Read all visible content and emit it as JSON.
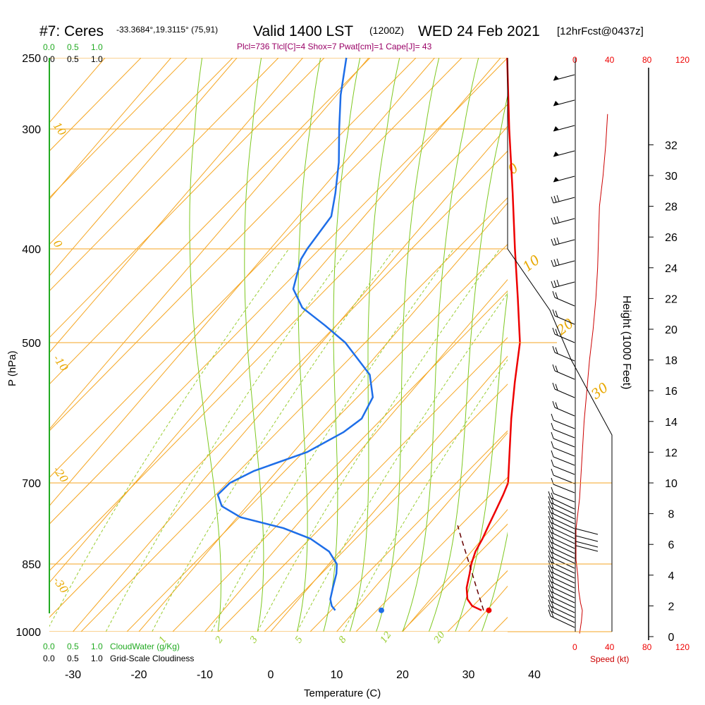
{
  "header": {
    "station": "#7: Ceres",
    "location": "-33.3684°,19.3115° (75,91)",
    "valid": "Valid 1400 LST",
    "zulu": "(1200Z)",
    "date": "WED 24 Feb 2021",
    "forecast": "[12hrFcst@0437z]",
    "indices": "Plcl=736 Tlcl[C]=4 Shox=7 Pwat[cm]=1 Cape[J]= 43"
  },
  "colors": {
    "isotherm": "#f5a623",
    "dry_adiabat": "#f5a623",
    "moist_adiabat": "#7ec820",
    "mixing_ratio": "#9acd32",
    "temperature": "#ee0000",
    "dewpoint": "#1e6ee8",
    "parcel": "#660000",
    "speed": "#cc0000",
    "cloud_axis": "#22aa22",
    "indices": "#990066"
  },
  "axes": {
    "x_label": "Temperature (C)",
    "y_label": "P (hPa)",
    "height_label": "Height (1000 Feet)",
    "speed_label": "Speed (kt)",
    "cloud_water_label": "CloudWater (g/Kg)",
    "cloudiness_label": "Grid-Scale Cloudiness",
    "cloud_ticks_green": [
      "0.0",
      "0.5",
      "1.0"
    ],
    "cloud_ticks_black": [
      "0.0",
      "0.5",
      "1.0"
    ],
    "speed_ticks": [
      "0",
      "40",
      "80",
      "120"
    ]
  },
  "chart_data": {
    "type": "skew-t",
    "pressure_levels": [
      250,
      300,
      400,
      500,
      700,
      850,
      1000
    ],
    "pressure_ticks": [
      "250",
      "300",
      "400",
      "500",
      "700",
      "850",
      "1000"
    ],
    "temp_ticks": [
      -30,
      -20,
      -10,
      0,
      10,
      20,
      30,
      40
    ],
    "height_ticks_kft": [
      0,
      2,
      4,
      6,
      8,
      10,
      12,
      14,
      16,
      18,
      20,
      22,
      24,
      26,
      28,
      30,
      32
    ],
    "temperature_profile": [
      {
        "p": 950,
        "t": 29.2
      },
      {
        "p": 940,
        "t": 27.2
      },
      {
        "p": 925,
        "t": 25.6
      },
      {
        "p": 900,
        "t": 24.0
      },
      {
        "p": 870,
        "t": 22.6
      },
      {
        "p": 850,
        "t": 21.6
      },
      {
        "p": 825,
        "t": 20.6
      },
      {
        "p": 800,
        "t": 20.0
      },
      {
        "p": 775,
        "t": 19.2
      },
      {
        "p": 750,
        "t": 18.4
      },
      {
        "p": 720,
        "t": 17.4
      },
      {
        "p": 700,
        "t": 16.6
      },
      {
        "p": 650,
        "t": 12.8
      },
      {
        "p": 600,
        "t": 8.7
      },
      {
        "p": 550,
        "t": 4.5
      },
      {
        "p": 500,
        "t": 0.1
      },
      {
        "p": 450,
        "t": -6.0
      },
      {
        "p": 400,
        "t": -12.9
      },
      {
        "p": 350,
        "t": -20.5
      },
      {
        "p": 300,
        "t": -29.4
      },
      {
        "p": 250,
        "t": -39.0
      }
    ],
    "dewpoint_profile": [
      {
        "p": 950,
        "t": 7.0
      },
      {
        "p": 940,
        "t": 5.9
      },
      {
        "p": 925,
        "t": 4.8
      },
      {
        "p": 900,
        "t": 3.7
      },
      {
        "p": 870,
        "t": 2.4
      },
      {
        "p": 850,
        "t": 1.2
      },
      {
        "p": 825,
        "t": -1.6
      },
      {
        "p": 800,
        "t": -6.1
      },
      {
        "p": 780,
        "t": -11.6
      },
      {
        "p": 760,
        "t": -19.5
      },
      {
        "p": 740,
        "t": -23.8
      },
      {
        "p": 720,
        "t": -25.9
      },
      {
        "p": 700,
        "t": -25.6
      },
      {
        "p": 680,
        "t": -23.5
      },
      {
        "p": 650,
        "t": -17.9
      },
      {
        "p": 620,
        "t": -15.0
      },
      {
        "p": 600,
        "t": -14.0
      },
      {
        "p": 570,
        "t": -15.1
      },
      {
        "p": 540,
        "t": -18.5
      },
      {
        "p": 500,
        "t": -26.4
      },
      {
        "p": 480,
        "t": -31.7
      },
      {
        "p": 460,
        "t": -37.5
      },
      {
        "p": 440,
        "t": -41.3
      },
      {
        "p": 410,
        "t": -44.0
      },
      {
        "p": 400,
        "t": -44.4
      },
      {
        "p": 370,
        "t": -45.0
      },
      {
        "p": 350,
        "t": -47.4
      },
      {
        "p": 325,
        "t": -50.9
      },
      {
        "p": 300,
        "t": -55.2
      },
      {
        "p": 275,
        "t": -59.4
      },
      {
        "p": 250,
        "t": -63.4
      }
    ],
    "parcel_path": [
      {
        "p": 950,
        "t": 29.5
      },
      {
        "p": 900,
        "t": 25.5
      },
      {
        "p": 850,
        "t": 21.3
      },
      {
        "p": 800,
        "t": 16.8
      },
      {
        "p": 775,
        "t": 14.5
      }
    ],
    "surface_points": {
      "temperature": {
        "p": 950,
        "t": 30.3
      },
      "dewpoint": {
        "p": 950,
        "t": 14.0
      }
    },
    "isotherm_labels": [
      "-30",
      "-20",
      "-10",
      "0",
      "10",
      "20",
      "30"
    ],
    "adiabat_labels": [
      "10",
      "0",
      "-10",
      "-20",
      "-30",
      "0",
      "10",
      "20",
      "30"
    ],
    "mixing_ratio_labels": [
      "1",
      "2",
      "3",
      "5",
      "8",
      "12",
      "20"
    ],
    "wind_speed_profile": [
      {
        "h": 0.2,
        "s": 4
      },
      {
        "h": 1.0,
        "s": 6
      },
      {
        "h": 1.7,
        "s": 7
      },
      {
        "h": 2.2,
        "s": 5
      },
      {
        "h": 3.0,
        "s": 3
      },
      {
        "h": 4.0,
        "s": 2
      },
      {
        "h": 5.0,
        "s": 0
      },
      {
        "h": 6.0,
        "s": 0
      },
      {
        "h": 7.0,
        "s": 0
      },
      {
        "h": 8.0,
        "s": 2
      },
      {
        "h": 9.0,
        "s": 4
      },
      {
        "h": 10.0,
        "s": 5
      },
      {
        "h": 12.0,
        "s": 7
      },
      {
        "h": 14.0,
        "s": 9
      },
      {
        "h": 16.0,
        "s": 12
      },
      {
        "h": 18.0,
        "s": 15
      },
      {
        "h": 20.0,
        "s": 19
      },
      {
        "h": 22.0,
        "s": 22
      },
      {
        "h": 24.0,
        "s": 24
      },
      {
        "h": 26.0,
        "s": 25
      },
      {
        "h": 28.0,
        "s": 26
      },
      {
        "h": 30.0,
        "s": 30
      },
      {
        "h": 32.0,
        "s": 33
      },
      {
        "h": 34.0,
        "s": 35
      }
    ]
  }
}
